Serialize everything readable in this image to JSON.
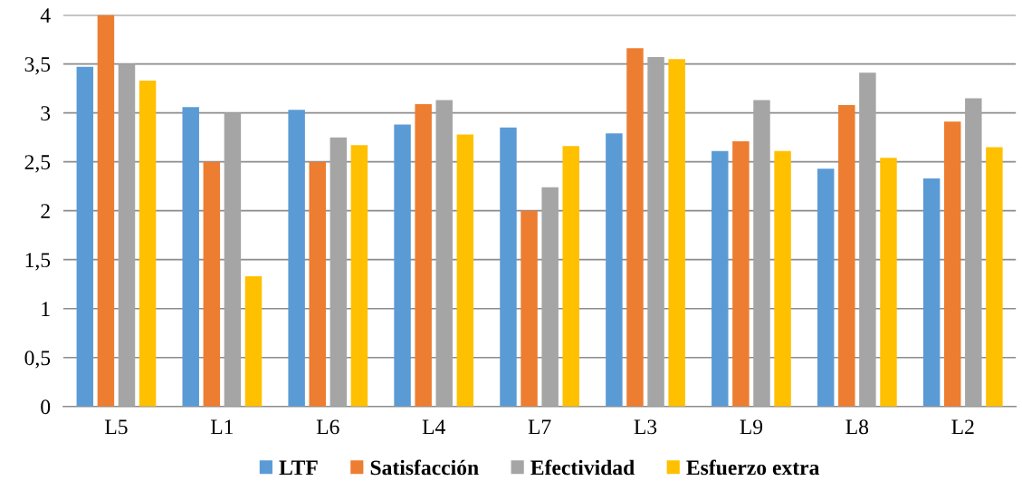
{
  "chart_data": {
    "type": "bar",
    "categories": [
      "L5",
      "L1",
      "L6",
      "L4",
      "L7",
      "L3",
      "L9",
      "L8",
      "L2"
    ],
    "series": [
      {
        "name": "LTF",
        "color": "#5b9bd5",
        "values": [
          3.47,
          3.06,
          3.03,
          2.88,
          2.85,
          2.79,
          2.61,
          2.43,
          2.33
        ]
      },
      {
        "name": "Satisfacción",
        "color": "#ed7d31",
        "values": [
          4.0,
          2.5,
          2.5,
          3.09,
          2.0,
          3.66,
          2.71,
          3.08,
          2.91
        ]
      },
      {
        "name": "Efectividad",
        "color": "#a5a5a5",
        "values": [
          3.5,
          3.0,
          2.75,
          3.13,
          2.24,
          3.57,
          3.13,
          3.41,
          3.15
        ]
      },
      {
        "name": "Esfuerzo extra",
        "color": "#ffc000",
        "values": [
          3.33,
          1.33,
          2.67,
          2.78,
          2.66,
          3.55,
          2.61,
          2.54,
          2.65
        ]
      }
    ],
    "ylim": [
      0,
      4
    ],
    "yticks": [
      0,
      {
        "value": 0.5,
        "label": "0,5"
      },
      1,
      {
        "value": 1.5,
        "label": "1,5"
      },
      2,
      {
        "value": 2.5,
        "label": "2,5"
      },
      3,
      {
        "value": 3.5,
        "label": "3,5"
      },
      4
    ],
    "grid": "y",
    "legend": "bottom"
  }
}
